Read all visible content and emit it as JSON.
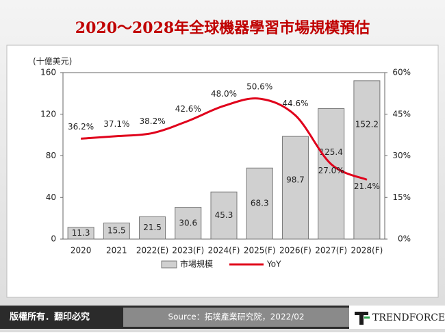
{
  "chart_data": {
    "type": "bar",
    "title": "2020～2028年全球機器學習市場規模預估",
    "y_axis_label": "(十億美元)",
    "categories": [
      "2020",
      "2021",
      "2022(E)",
      "2023(F)",
      "2024(F)",
      "2025(F)",
      "2026(F)",
      "2027(F)",
      "2028(F)"
    ],
    "series": [
      {
        "name": "市場規模",
        "type": "bar",
        "color": "#d0d0d0",
        "values": [
          11.3,
          15.5,
          21.5,
          30.6,
          45.3,
          68.3,
          98.7,
          125.4,
          152.2
        ]
      },
      {
        "name": "YoY",
        "type": "line",
        "axis": "y2",
        "color": "#e0001b",
        "values": [
          36.2,
          37.1,
          38.2,
          42.6,
          48.0,
          50.6,
          44.6,
          27.0,
          21.4
        ],
        "value_labels": [
          "36.2%",
          "37.1%",
          "38.2%",
          "42.6%",
          "48.0%",
          "50.6%",
          "44.6%",
          "27.0%",
          "21.4%"
        ]
      }
    ],
    "ylim": [
      0,
      160
    ],
    "yticks": [
      0,
      40,
      80,
      120,
      160
    ],
    "y2lim": [
      0,
      60
    ],
    "y2ticks": [
      {
        "value": 0,
        "label": "0%"
      },
      {
        "value": 15,
        "label": "15%"
      },
      {
        "value": 30,
        "label": "30%"
      },
      {
        "value": 45,
        "label": "45%"
      },
      {
        "value": 60,
        "label": "60%"
      }
    ],
    "legend": "bottom"
  },
  "footer": {
    "copyright": "版權所有．翻印必究",
    "source": "Source：拓墣產業研究院，2022/02",
    "logo": "TRENDFORCE"
  }
}
